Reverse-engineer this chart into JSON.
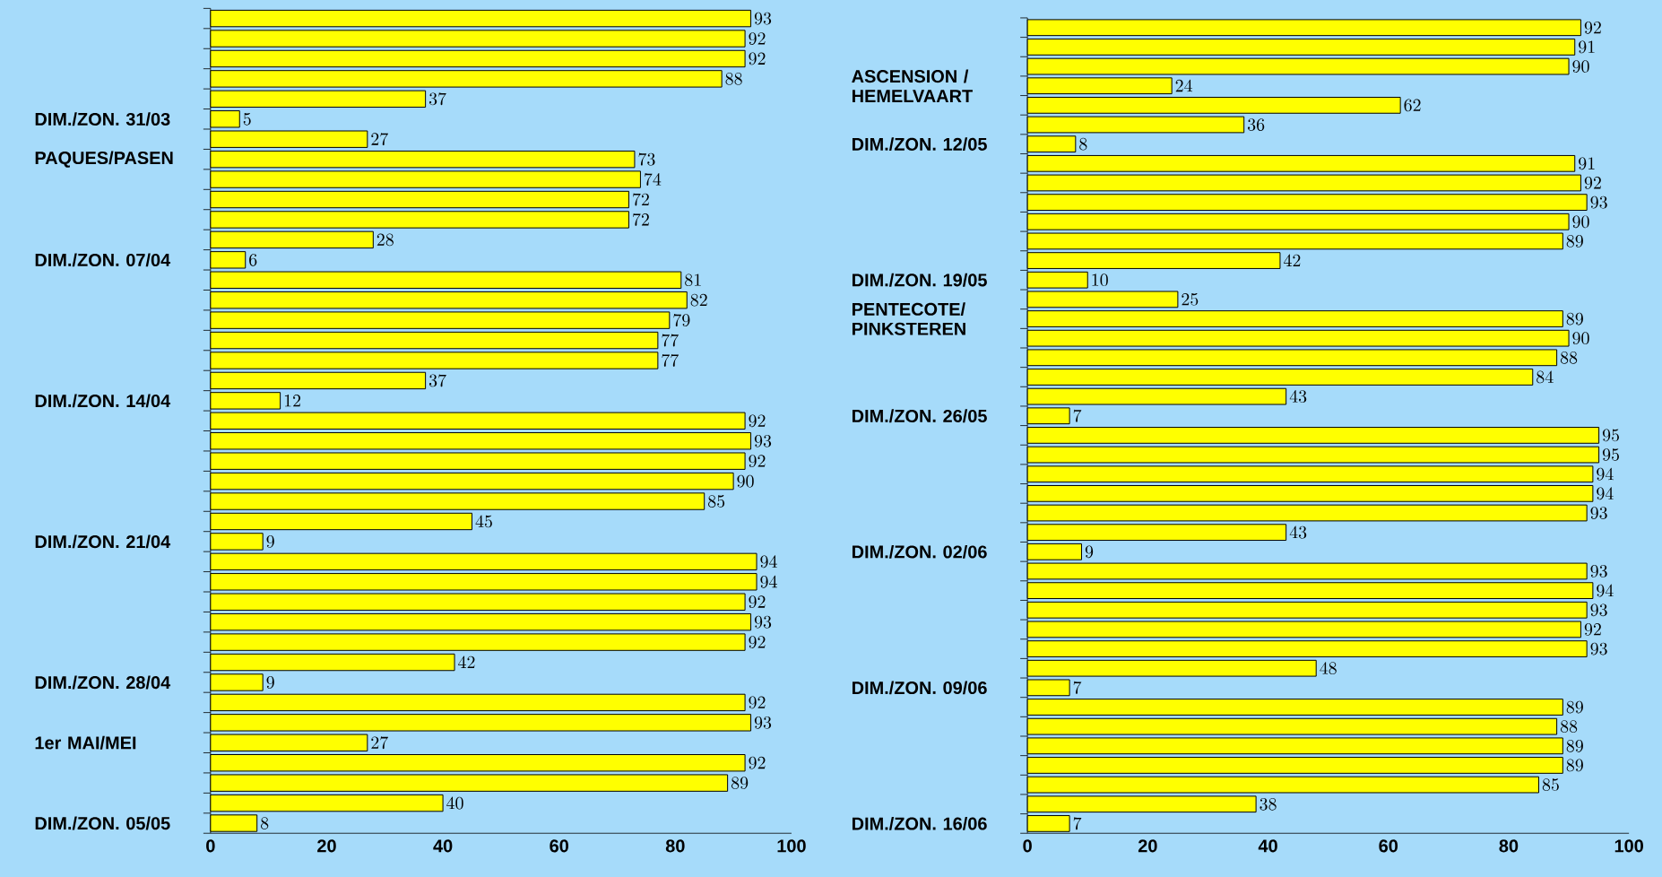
{
  "chart_data": [
    {
      "type": "bar",
      "orientation": "horizontal",
      "color": "#ffff00",
      "data_labels": true,
      "xlim": [
        0,
        100
      ],
      "xticks": [
        0,
        20,
        40,
        60,
        80,
        100
      ],
      "categories": [
        null,
        null,
        null,
        null,
        null,
        "DIM./ZON. 31/03",
        null,
        "PAQUES/PASEN",
        null,
        null,
        null,
        null,
        "DIM./ZON. 07/04",
        null,
        null,
        null,
        null,
        null,
        null,
        "DIM./ZON. 14/04",
        null,
        null,
        null,
        null,
        null,
        null,
        "DIM./ZON. 21/04",
        null,
        null,
        null,
        null,
        null,
        null,
        "DIM./ZON. 28/04",
        null,
        null,
        "1er MAI/MEI",
        null,
        null,
        null,
        "DIM./ZON. 05/05"
      ],
      "values": [
        93,
        92,
        92,
        88,
        37,
        5,
        27,
        73,
        74,
        72,
        72,
        28,
        6,
        81,
        82,
        79,
        77,
        77,
        37,
        12,
        92,
        93,
        92,
        90,
        85,
        45,
        9,
        94,
        94,
        92,
        93,
        92,
        42,
        9,
        92,
        93,
        27,
        92,
        89,
        40,
        8
      ]
    },
    {
      "type": "bar",
      "orientation": "horizontal",
      "color": "#ffff00",
      "data_labels": true,
      "xlim": [
        0,
        100
      ],
      "xticks": [
        0,
        20,
        40,
        60,
        80,
        100
      ],
      "categories": [
        null,
        null,
        null,
        "ASCENSION / HEMELVAART",
        null,
        null,
        "DIM./ZON. 12/05",
        null,
        null,
        null,
        null,
        null,
        null,
        "DIM./ZON. 19/05",
        null,
        "PENTECOTE/ PINKSTEREN",
        null,
        null,
        null,
        null,
        "DIM./ZON. 26/05",
        null,
        null,
        null,
        null,
        null,
        null,
        "DIM./ZON. 02/06",
        null,
        null,
        null,
        null,
        null,
        null,
        "DIM./ZON. 09/06",
        null,
        null,
        null,
        null,
        null,
        null,
        "DIM./ZON. 16/06"
      ],
      "values": [
        92,
        91,
        90,
        24,
        62,
        36,
        8,
        91,
        92,
        93,
        90,
        89,
        42,
        10,
        25,
        89,
        90,
        88,
        84,
        43,
        7,
        95,
        95,
        94,
        94,
        93,
        43,
        9,
        93,
        94,
        93,
        92,
        93,
        48,
        7,
        89,
        88,
        89,
        89,
        85,
        38,
        7
      ]
    }
  ]
}
